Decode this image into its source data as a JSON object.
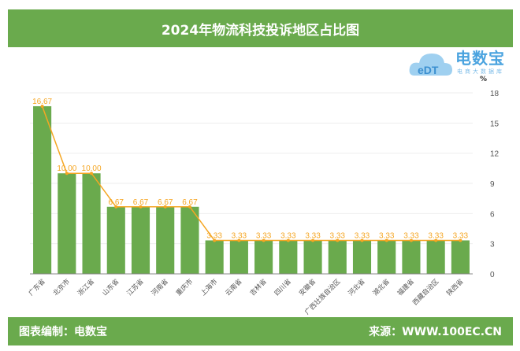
{
  "title": "2024年物流科技投诉地区占比图",
  "footer": {
    "left": "图表编制：电数宝",
    "right": "来源：WWW.100EC.CN"
  },
  "logo": {
    "name": "电数宝",
    "tagline": "电商大数据库",
    "mark": "eDT"
  },
  "colors": {
    "header": "#6aaa4d",
    "bar": "#6aaa4d",
    "line": "#f5a623"
  },
  "chart_data": {
    "type": "bar",
    "title": "2024年物流科技投诉地区占比图",
    "ylabel": "%",
    "ylim": [
      0,
      18
    ],
    "yticks": [
      0,
      3,
      6,
      9,
      12,
      15,
      18
    ],
    "categories": [
      "广东省",
      "北京市",
      "浙江省",
      "山东省",
      "江苏省",
      "河南省",
      "重庆市",
      "上海市",
      "云南省",
      "吉林省",
      "四川省",
      "安徽省",
      "广西壮族自治区",
      "河北省",
      "湖北省",
      "福建省",
      "西藏自治区",
      "陕西省"
    ],
    "values": [
      16.67,
      10.0,
      10.0,
      6.67,
      6.67,
      6.67,
      6.67,
      3.33,
      3.33,
      3.33,
      3.33,
      3.33,
      3.33,
      3.33,
      3.33,
      3.33,
      3.33,
      3.33
    ],
    "series": [
      {
        "name": "bar",
        "values": [
          16.67,
          10.0,
          10.0,
          6.67,
          6.67,
          6.67,
          6.67,
          3.33,
          3.33,
          3.33,
          3.33,
          3.33,
          3.33,
          3.33,
          3.33,
          3.33,
          3.33,
          3.33
        ]
      },
      {
        "name": "line",
        "values": [
          16.67,
          10.0,
          10.0,
          6.67,
          6.67,
          6.67,
          6.67,
          3.33,
          3.33,
          3.33,
          3.33,
          3.33,
          3.33,
          3.33,
          3.33,
          3.33,
          3.33,
          3.33
        ]
      }
    ],
    "grid": true
  }
}
